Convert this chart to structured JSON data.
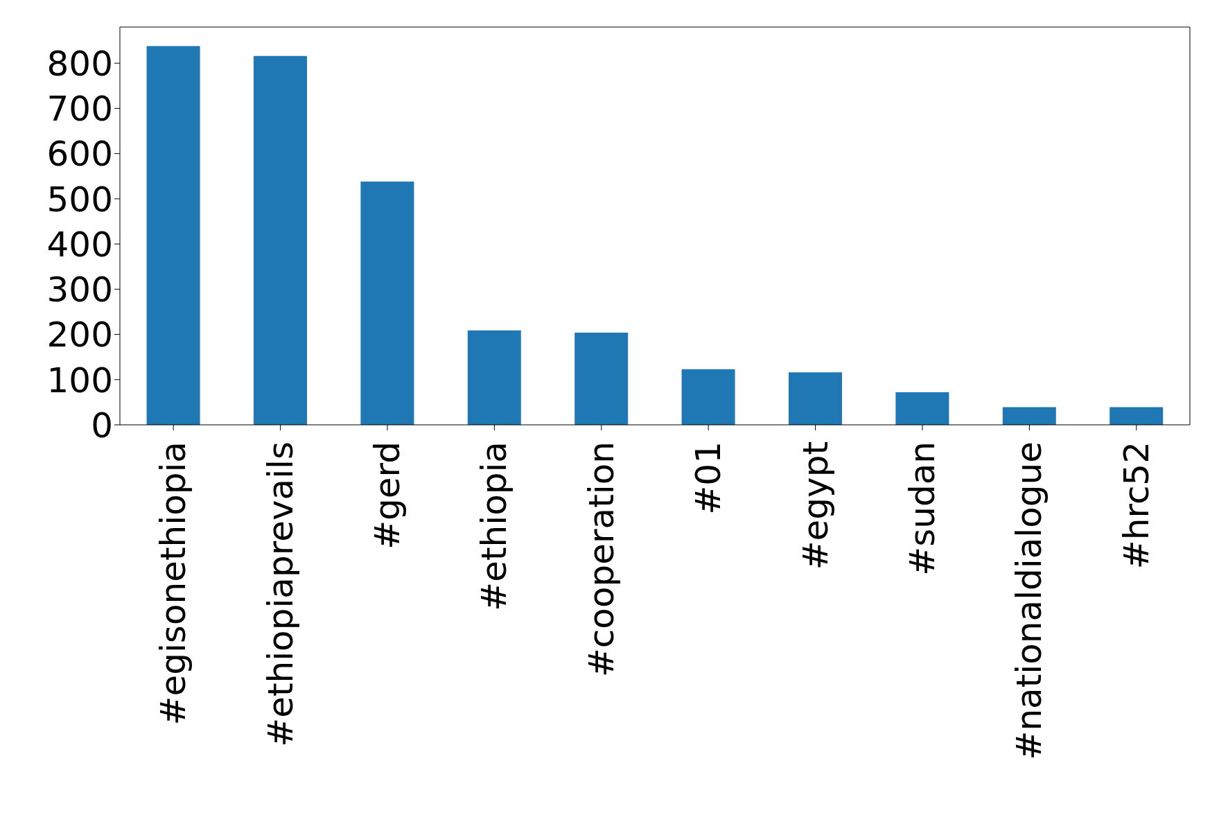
{
  "chart_data": {
    "type": "bar",
    "categories": [
      "#egisonethiopia",
      "#ethiopiaprevails",
      "#gerd",
      "#ethiopia",
      "#cooperation",
      "#01",
      "#egypt",
      "#sudan",
      "#nationaldialogue",
      "#hrc52"
    ],
    "values": [
      838,
      816,
      538,
      209,
      204,
      123,
      116,
      72,
      39,
      39
    ],
    "color": "#1f77b4",
    "ylim": [
      0,
      880
    ],
    "yticks": [
      0,
      100,
      200,
      300,
      400,
      500,
      600,
      700,
      800
    ],
    "grid": false
  }
}
